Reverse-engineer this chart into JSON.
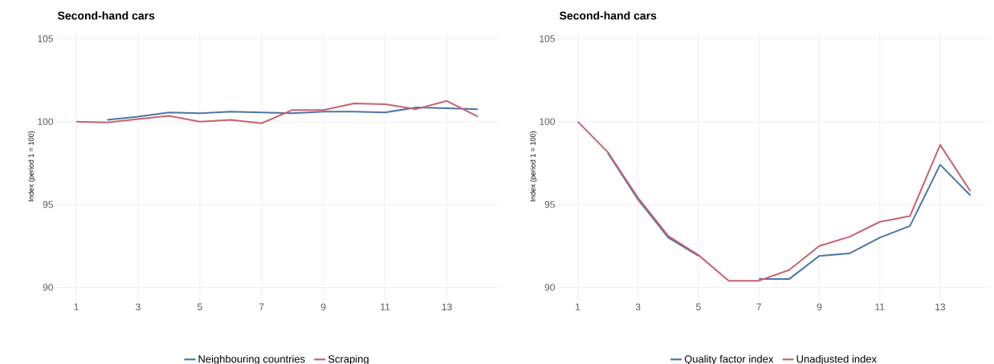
{
  "chart_data": [
    {
      "type": "line",
      "title": "Second-hand cars",
      "ylabel": "Index (period 1 = 100)",
      "x": [
        1,
        2,
        3,
        4,
        5,
        6,
        7,
        8,
        9,
        10,
        11,
        12,
        13,
        14
      ],
      "series": [
        {
          "name": "Neighbouring countries",
          "color": "#4a76a8",
          "values": [
            null,
            100.1,
            100.3,
            100.55,
            100.5,
            100.6,
            100.55,
            100.5,
            100.6,
            100.6,
            100.55,
            100.85,
            100.8,
            100.75
          ]
        },
        {
          "name": "Scraping",
          "color": "#c9616f",
          "values": [
            100,
            99.95,
            100.15,
            100.35,
            100,
            100.1,
            99.9,
            100.7,
            100.7,
            101.1,
            101.05,
            100.75,
            101.25,
            100.3
          ]
        }
      ],
      "xlim": [
        0.35,
        14.65
      ],
      "ylim": [
        89.2,
        105.4
      ],
      "xticks": [
        1,
        3,
        5,
        7,
        9,
        11,
        13
      ],
      "yticks": [
        90,
        95,
        100,
        105
      ],
      "grid": true,
      "legend": "bottom"
    },
    {
      "type": "line",
      "title": "Second-hand cars",
      "ylabel": "Index (period 1 = 100)",
      "x": [
        1,
        2,
        3,
        4,
        5,
        6,
        7,
        8,
        9,
        10,
        11,
        12,
        13,
        14
      ],
      "series": [
        {
          "name": "Quality factor index",
          "color": "#4a76a8",
          "values": [
            null,
            98.1,
            95.3,
            93.0,
            91.9,
            null,
            90.5,
            90.5,
            91.9,
            92.05,
            93.0,
            93.7,
            97.4,
            95.55
          ]
        },
        {
          "name": "Unadjusted index",
          "color": "#c9616f",
          "values": [
            100,
            98.15,
            95.4,
            93.1,
            91.95,
            90.4,
            90.4,
            91.05,
            92.5,
            93.05,
            93.95,
            94.3,
            98.6,
            95.8
          ]
        }
      ],
      "xlim": [
        0.35,
        14.65
      ],
      "ylim": [
        89.2,
        105.4
      ],
      "xticks": [
        1,
        3,
        5,
        7,
        9,
        11,
        13
      ],
      "yticks": [
        90,
        95,
        100,
        105
      ],
      "grid": true,
      "legend": "bottom"
    }
  ]
}
